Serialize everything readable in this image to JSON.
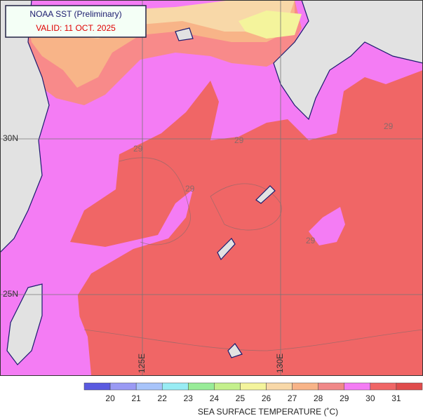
{
  "header": {
    "title": "NOAA SST (Preliminary)",
    "valid": "VALID: 11 OCT. 2025"
  },
  "map": {
    "lat_labels": [
      "30N",
      "25N"
    ],
    "lon_labels": [
      "125E",
      "130E"
    ],
    "contour_labels": [
      "29",
      "29",
      "29",
      "29",
      "29"
    ]
  },
  "legend": {
    "title": "SEA SURFACE TEMPERATURE (˚C)",
    "ticks": [
      20,
      21,
      22,
      23,
      24,
      25,
      26,
      27,
      28,
      29,
      30,
      31
    ],
    "colors": [
      "#5a5ae0",
      "#9a9af4",
      "#a8c4fa",
      "#98ecf4",
      "#98ec98",
      "#c4f08c",
      "#f4f49c",
      "#f8d8a8",
      "#f8b488",
      "#f08888",
      "#f47cf4",
      "#f06666",
      "#e04c4c"
    ]
  }
}
